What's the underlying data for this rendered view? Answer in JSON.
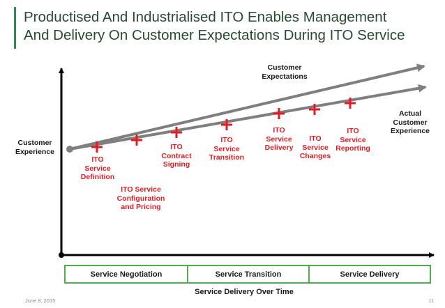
{
  "title": {
    "line1": "Productised And Industrialised ITO Enables Management",
    "line2": "And Delivery On Customer Expectations During ITO Service"
  },
  "labels": {
    "y_axis": "Customer\nExperience",
    "x_axis": "Service Delivery Over Time",
    "customer_expectations": "Customer\nExpectations",
    "actual_experience": "Actual\nCustomer\nExperience"
  },
  "milestones": [
    {
      "label": "ITO\nService\nDefinition"
    },
    {
      "label": "ITO Service\nConfiguration\nand Pricing"
    },
    {
      "label": "ITO\nContract\nSigning"
    },
    {
      "label": "ITO\nService\nTransition"
    },
    {
      "label": "ITO\nService\nDelivery"
    },
    {
      "label": "ITO\nService\nChanges"
    },
    {
      "label": "ITO\nService\nReporting"
    }
  ],
  "phases": [
    {
      "label": "Service Negotiation"
    },
    {
      "label": "Service Transition"
    },
    {
      "label": "Service Delivery"
    }
  ],
  "footer": {
    "date": "June 8, 2015",
    "page": "11"
  },
  "colors": {
    "accent_green": "#4cae4c",
    "plus_red": "#e31b23",
    "line_gray": "#7f7f7f",
    "axis_black": "#000000"
  }
}
